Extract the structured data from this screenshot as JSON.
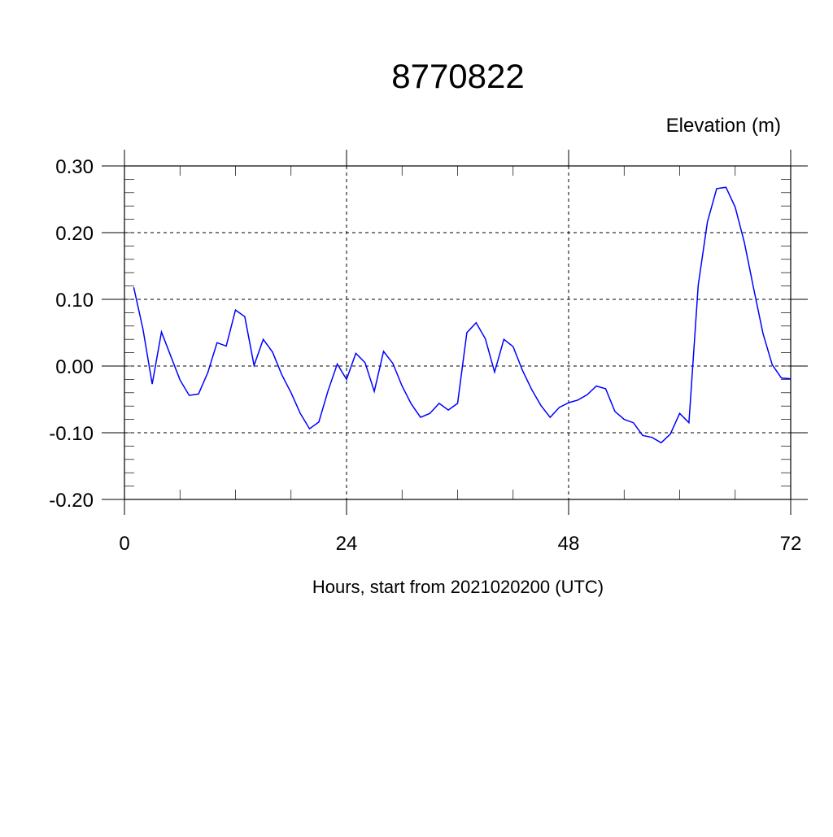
{
  "chart_data": {
    "type": "line",
    "title": "8770822",
    "ylabel": "Elevation (m)",
    "xlabel": "Hours, start from 2021020200 (UTC)",
    "xlim": [
      0,
      72
    ],
    "ylim": [
      -0.2,
      0.3
    ],
    "x_ticks": [
      0,
      24,
      48,
      72
    ],
    "x_tick_labels": [
      "0",
      "24",
      "48",
      "72"
    ],
    "y_ticks": [
      -0.2,
      -0.1,
      0.0,
      0.1,
      0.2,
      0.3
    ],
    "y_tick_labels": [
      "-0.20",
      "-0.10",
      "0.00",
      "0.10",
      "0.20",
      "0.30"
    ],
    "grid": true,
    "line_color": "#0000ff",
    "series": [
      {
        "x": [
          1,
          2,
          3,
          4,
          5,
          6,
          7,
          8,
          9,
          10,
          11,
          12,
          13,
          14,
          15,
          16,
          17,
          18,
          19,
          20,
          21,
          22,
          23,
          24,
          25,
          26,
          27,
          28,
          29,
          30,
          31,
          32,
          33,
          34,
          35,
          36,
          37,
          38,
          39,
          40,
          41,
          42,
          43,
          44,
          45,
          46,
          47,
          48,
          49,
          50,
          51,
          52,
          53,
          54,
          55,
          56,
          57,
          58,
          59,
          60,
          61,
          62,
          63,
          64,
          65,
          66,
          67,
          68,
          69,
          70,
          71,
          72
        ],
        "values": [
          0.118,
          0.055,
          -0.027,
          0.051,
          0.015,
          -0.021,
          -0.044,
          -0.042,
          -0.01,
          0.035,
          0.03,
          0.084,
          0.074,
          0.001,
          0.04,
          0.021,
          -0.013,
          -0.04,
          -0.071,
          -0.094,
          -0.084,
          -0.037,
          0.003,
          -0.02,
          0.019,
          0.005,
          -0.038,
          0.022,
          0.004,
          -0.03,
          -0.057,
          -0.077,
          -0.071,
          -0.056,
          -0.066,
          -0.056,
          0.05,
          0.065,
          0.041,
          -0.009,
          0.04,
          0.029,
          -0.006,
          -0.035,
          -0.059,
          -0.077,
          -0.062,
          -0.055,
          -0.051,
          -0.043,
          -0.03,
          -0.034,
          -0.068,
          -0.08,
          -0.085,
          -0.104,
          -0.107,
          -0.115,
          -0.102,
          -0.071,
          -0.085,
          0.121,
          0.216,
          0.266,
          0.268,
          0.238,
          0.185,
          0.116,
          0.049,
          0.002,
          -0.018,
          -0.019
        ]
      }
    ]
  }
}
